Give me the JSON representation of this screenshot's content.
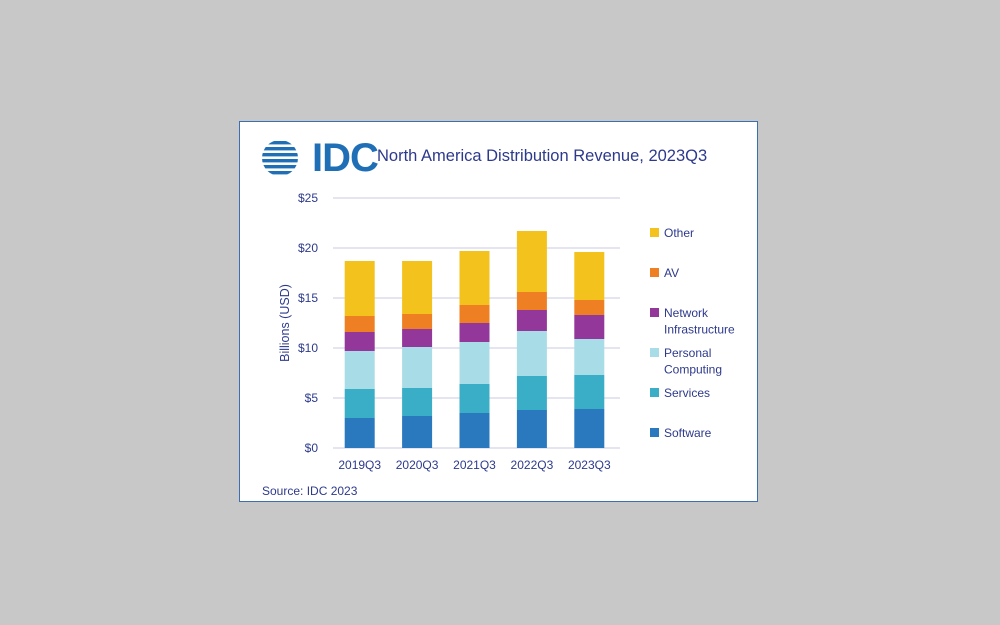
{
  "logo": {
    "text": "IDC"
  },
  "source": "Source: IDC 2023",
  "colors": {
    "Software": "#2a78be",
    "Services": "#3aaec7",
    "Personal Computing": "#a8dce6",
    "Network Infrastructure": "#93379a",
    "AV": "#ef7f23",
    "Other": "#f3c21d",
    "axis_text": "#2d3a8c",
    "grid": "#c9cbe0"
  },
  "chart_data": {
    "type": "bar",
    "stacked": true,
    "title": "North America Distribution Revenue, 2023Q3",
    "xlabel": "",
    "ylabel": "Billions (USD)",
    "ylim": [
      0,
      25
    ],
    "yticks": [
      "$0",
      "$5",
      "$10",
      "$15",
      "$20",
      "$25"
    ],
    "ytick_values": [
      0,
      5,
      10,
      15,
      20,
      25
    ],
    "grid": true,
    "legend_position": "right",
    "categories": [
      "2019Q3",
      "2020Q3",
      "2021Q3",
      "2022Q3",
      "2023Q3"
    ],
    "series": [
      {
        "name": "Software",
        "values": [
          3.0,
          3.2,
          3.5,
          3.8,
          3.9
        ]
      },
      {
        "name": "Services",
        "values": [
          2.9,
          2.8,
          2.9,
          3.4,
          3.4
        ]
      },
      {
        "name": "Personal Computing",
        "values": [
          3.8,
          4.1,
          4.2,
          4.5,
          3.6
        ]
      },
      {
        "name": "Network Infrastructure",
        "values": [
          1.9,
          1.8,
          1.9,
          2.1,
          2.4
        ]
      },
      {
        "name": "AV",
        "values": [
          1.6,
          1.5,
          1.8,
          1.8,
          1.5
        ]
      },
      {
        "name": "Other",
        "values": [
          5.5,
          5.3,
          5.4,
          6.1,
          4.8
        ]
      }
    ],
    "legend": [
      {
        "lines": [
          "Other"
        ]
      },
      {
        "lines": [
          "AV"
        ]
      },
      {
        "lines": [
          "Network",
          "Infrastructure"
        ]
      },
      {
        "lines": [
          "Personal",
          "Computing"
        ]
      },
      {
        "lines": [
          "Services"
        ]
      },
      {
        "lines": [
          "Software"
        ]
      }
    ]
  }
}
